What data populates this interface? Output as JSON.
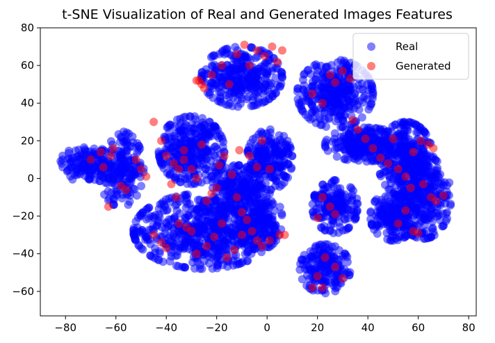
{
  "chart_data": {
    "type": "scatter",
    "title": "t-SNE Visualization of Real and Generated Images Features",
    "xlabel": "",
    "ylabel": "",
    "xlim": [
      -90,
      83
    ],
    "ylim": [
      -73,
      80
    ],
    "xticks": [
      -80,
      -60,
      -40,
      -20,
      0,
      20,
      40,
      60,
      80
    ],
    "yticks": [
      -60,
      -40,
      -20,
      0,
      20,
      40,
      60,
      80
    ],
    "grid": false,
    "legend_position": "top-right",
    "series": [
      {
        "name": "Real",
        "color": "#0000ff",
        "alpha": 0.5,
        "clusters": [
          {
            "cx": -72,
            "cy": 8,
            "rx": 10,
            "ry": 10,
            "n": 120
          },
          {
            "cx": -58,
            "cy": 5,
            "rx": 9,
            "ry": 20,
            "n": 200
          },
          {
            "cx": -30,
            "cy": 15,
            "rx": 13,
            "ry": 18,
            "n": 320
          },
          {
            "cx": -25,
            "cy": -28,
            "rx": 28,
            "ry": 20,
            "n": 600
          },
          {
            "cx": -12,
            "cy": -5,
            "rx": 10,
            "ry": 12,
            "n": 200
          },
          {
            "cx": -10,
            "cy": 54,
            "rx": 16,
            "ry": 16,
            "n": 330
          },
          {
            "cx": 1,
            "cy": 10,
            "rx": 9,
            "ry": 16,
            "n": 220
          },
          {
            "cx": -3,
            "cy": -22,
            "rx": 9,
            "ry": 16,
            "n": 180
          },
          {
            "cx": 27,
            "cy": 45,
            "rx": 15,
            "ry": 18,
            "n": 330
          },
          {
            "cx": 39,
            "cy": 18,
            "rx": 16,
            "ry": 9,
            "n": 260
          },
          {
            "cx": 55,
            "cy": 10,
            "rx": 11,
            "ry": 20,
            "n": 300
          },
          {
            "cx": 62,
            "cy": -10,
            "rx": 11,
            "ry": 22,
            "n": 280
          },
          {
            "cx": 50,
            "cy": -20,
            "rx": 9,
            "ry": 13,
            "n": 180
          },
          {
            "cx": 27,
            "cy": -15,
            "rx": 9,
            "ry": 14,
            "n": 180
          },
          {
            "cx": 23,
            "cy": -48,
            "rx": 10,
            "ry": 13,
            "n": 180
          }
        ]
      },
      {
        "name": "Generated",
        "color": "#ff0000",
        "alpha": 0.5,
        "points": [
          [
            -70,
            10
          ],
          [
            -66,
            14
          ],
          [
            -65,
            6
          ],
          [
            -62,
            12
          ],
          [
            -61,
            16
          ],
          [
            -63,
            -15
          ],
          [
            -58,
            -4
          ],
          [
            -56,
            -6
          ],
          [
            -52,
            10
          ],
          [
            -50,
            5
          ],
          [
            -48,
            1
          ],
          [
            -45,
            30
          ],
          [
            -42,
            20
          ],
          [
            -40,
            12
          ],
          [
            -38,
            -3
          ],
          [
            -36,
            -10
          ],
          [
            -33,
            15
          ],
          [
            -30,
            5
          ],
          [
            -28,
            0
          ],
          [
            -26,
            18
          ],
          [
            -24,
            -12
          ],
          [
            -22,
            -8
          ],
          [
            -20,
            -5
          ],
          [
            -19,
            7
          ],
          [
            -17,
            12
          ],
          [
            -14,
            2
          ],
          [
            -12,
            -10
          ],
          [
            -10,
            -18
          ],
          [
            -8,
            -22
          ],
          [
            -6,
            -28
          ],
          [
            -4,
            -33
          ],
          [
            -2,
            -36
          ],
          [
            1,
            -33
          ],
          [
            5,
            -30
          ],
          [
            7,
            -30
          ],
          [
            -45,
            -30
          ],
          [
            -42,
            -34
          ],
          [
            -40,
            -37
          ],
          [
            -35,
            -24
          ],
          [
            -32,
            -26
          ],
          [
            -30,
            -28
          ],
          [
            -28,
            -40
          ],
          [
            -24,
            -36
          ],
          [
            -21,
            -31
          ],
          [
            -18,
            -24
          ],
          [
            -16,
            -42
          ],
          [
            -13,
            -38
          ],
          [
            -10,
            -30
          ],
          [
            -35,
            5
          ],
          [
            -33,
            10
          ],
          [
            -37,
            8
          ],
          [
            -11,
            15
          ],
          [
            -7,
            12
          ],
          [
            -4,
            6
          ],
          [
            -2,
            20
          ],
          [
            1,
            5
          ],
          [
            -27,
            52
          ],
          [
            -25,
            48
          ],
          [
            -22,
            55
          ],
          [
            -18,
            60
          ],
          [
            -15,
            50
          ],
          [
            -12,
            66
          ],
          [
            -9,
            71
          ],
          [
            -7,
            60
          ],
          [
            -4,
            68
          ],
          [
            -1,
            65
          ],
          [
            2,
            70
          ],
          [
            4,
            62
          ],
          [
            6,
            68
          ],
          [
            -26,
            50
          ],
          [
            -28,
            52
          ],
          [
            18,
            45
          ],
          [
            22,
            40
          ],
          [
            25,
            55
          ],
          [
            27,
            51
          ],
          [
            30,
            57
          ],
          [
            33,
            53
          ],
          [
            34,
            31
          ],
          [
            36,
            26
          ],
          [
            39,
            21
          ],
          [
            42,
            16
          ],
          [
            45,
            11
          ],
          [
            48,
            8
          ],
          [
            50,
            21
          ],
          [
            52,
            5
          ],
          [
            55,
            1
          ],
          [
            57,
            -5
          ],
          [
            58,
            14
          ],
          [
            61,
            20
          ],
          [
            64,
            18
          ],
          [
            66,
            16
          ],
          [
            62,
            -3
          ],
          [
            65,
            -10
          ],
          [
            67,
            -12
          ],
          [
            70,
            -9
          ],
          [
            55,
            -17
          ],
          [
            52,
            -24
          ],
          [
            58,
            -28
          ],
          [
            60,
            -29
          ],
          [
            22,
            -10
          ],
          [
            25,
            -15
          ],
          [
            27,
            -19
          ],
          [
            20,
            -21
          ],
          [
            23,
            -42
          ],
          [
            20,
            -52
          ],
          [
            22,
            -58
          ],
          [
            27,
            -47
          ],
          [
            30,
            -53
          ],
          [
            18,
            -58
          ]
        ]
      }
    ]
  }
}
